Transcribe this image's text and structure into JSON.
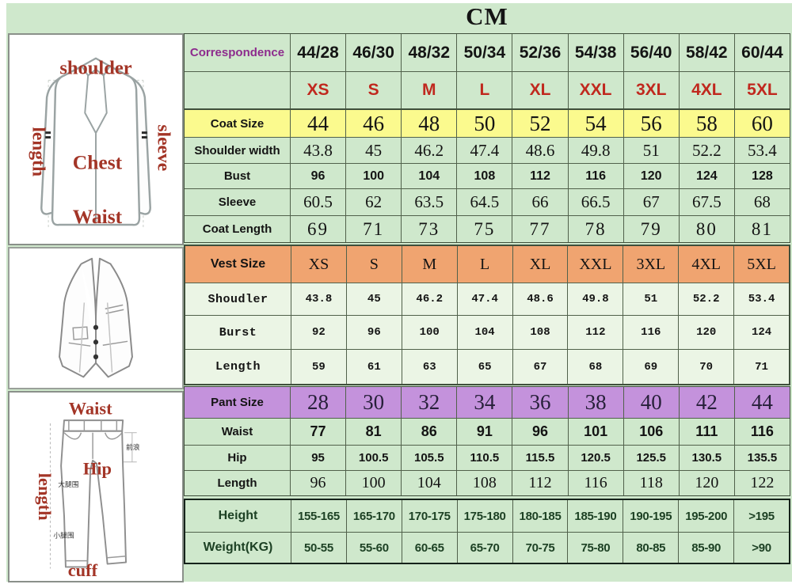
{
  "title": "CM",
  "chart_data": {
    "type": "table",
    "unit": "CM",
    "correspondence": {
      "label": "Correspondence",
      "values": [
        "44/28",
        "46/30",
        "48/32",
        "50/34",
        "52/36",
        "54/38",
        "56/40",
        "58/42",
        "60/44"
      ]
    },
    "size_row": {
      "label": "",
      "values": [
        "XS",
        "S",
        "M",
        "L",
        "XL",
        "XXL",
        "3XL",
        "4XL",
        "5XL"
      ]
    },
    "coat": [
      {
        "label": "Coat Size",
        "values": [
          "44",
          "46",
          "48",
          "50",
          "52",
          "54",
          "56",
          "58",
          "60"
        ]
      },
      {
        "label": "Shoulder width",
        "values": [
          "43.8",
          "45",
          "46.2",
          "47.4",
          "48.6",
          "49.8",
          "51",
          "52.2",
          "53.4"
        ]
      },
      {
        "label": "Bust",
        "values": [
          "96",
          "100",
          "104",
          "108",
          "112",
          "116",
          "120",
          "124",
          "128"
        ]
      },
      {
        "label": "Sleeve",
        "values": [
          "60.5",
          "62",
          "63.5",
          "64.5",
          "66",
          "66.5",
          "67",
          "67.5",
          "68"
        ]
      },
      {
        "label": "Coat Length",
        "values": [
          "69",
          "71",
          "73",
          "75",
          "77",
          "78",
          "79",
          "80",
          "81"
        ]
      }
    ],
    "vest": [
      {
        "label": "Vest Size",
        "values": [
          "XS",
          "S",
          "M",
          "L",
          "XL",
          "XXL",
          "3XL",
          "4XL",
          "5XL"
        ]
      },
      {
        "label": "Shoudler",
        "values": [
          "43.8",
          "45",
          "46.2",
          "47.4",
          "48.6",
          "49.8",
          "51",
          "52.2",
          "53.4"
        ]
      },
      {
        "label": "Burst",
        "values": [
          "92",
          "96",
          "100",
          "104",
          "108",
          "112",
          "116",
          "120",
          "124"
        ]
      },
      {
        "label": "Length",
        "values": [
          "59",
          "61",
          "63",
          "65",
          "67",
          "68",
          "69",
          "70",
          "71"
        ]
      }
    ],
    "pant": [
      {
        "label": "Pant Size",
        "values": [
          "28",
          "30",
          "32",
          "34",
          "36",
          "38",
          "40",
          "42",
          "44"
        ]
      },
      {
        "label": "Waist",
        "values": [
          "77",
          "81",
          "86",
          "91",
          "96",
          "101",
          "106",
          "111",
          "116"
        ]
      },
      {
        "label": "Hip",
        "values": [
          "95",
          "100.5",
          "105.5",
          "110.5",
          "115.5",
          "120.5",
          "125.5",
          "130.5",
          "135.5"
        ]
      },
      {
        "label": "Length",
        "values": [
          "96",
          "100",
          "104",
          "108",
          "112",
          "116",
          "118",
          "120",
          "122"
        ]
      }
    ],
    "body": [
      {
        "label": "Height",
        "values": [
          "155-165",
          "165-170",
          "170-175",
          "175-180",
          "180-185",
          "185-190",
          "190-195",
          "195-200",
          ">195"
        ]
      },
      {
        "label": "Weight(KG)",
        "values": [
          "50-55",
          "55-60",
          "60-65",
          "65-70",
          "70-75",
          "75-80",
          "80-85",
          "85-90",
          ">90"
        ]
      }
    ]
  },
  "illustrations": {
    "jacket": {
      "top_label": "shoulder",
      "left_label": "length",
      "right_label": "sleeve",
      "center_label": "Chest",
      "lower_label": "Waist"
    },
    "pants": {
      "top_label": "Waist",
      "left_label": "length",
      "center_label": "Hip",
      "bottom_label": "cuff",
      "thigh_note": "大腿围",
      "calf_note": "小腿围",
      "rise_note": "前浪"
    }
  },
  "colors": {
    "background": "#cfe8cc",
    "coat_header_bg": "#fbfa8e",
    "vest_header_bg": "#f0a470",
    "pant_header_bg": "#c492dc",
    "size_text": "#c0281e",
    "correspondence_text": "#8d2b8d",
    "body_rows_text": "#1d4124",
    "annotation_red": "#a33527"
  }
}
